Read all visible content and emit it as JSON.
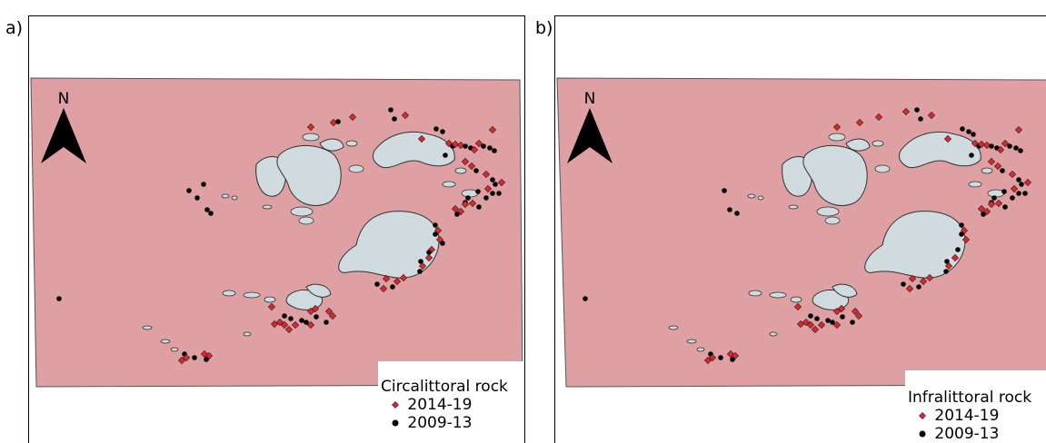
{
  "panels": [
    {
      "letter": "a)",
      "north_label": "N",
      "legend": {
        "title": "Circalittoral rock",
        "items": [
          {
            "label": "2014-19",
            "symbol": "diamond-icon",
            "color": "#e0262b"
          },
          {
            "label": "2009-13",
            "symbol": "dot-icon",
            "color": "#000000"
          }
        ]
      }
    },
    {
      "letter": "b)",
      "north_label": "N",
      "legend": {
        "title": "Infralittoral rock",
        "items": [
          {
            "label": "2014-19",
            "symbol": "diamond-icon",
            "color": "#e0262b"
          },
          {
            "label": "2009-13",
            "symbol": "dot-icon",
            "color": "#000000"
          }
        ]
      }
    }
  ],
  "colors": {
    "sea": "#dea0a3",
    "land": "#cfdbde",
    "recent_survey": "#e0262b",
    "earlier_survey": "#000000"
  }
}
